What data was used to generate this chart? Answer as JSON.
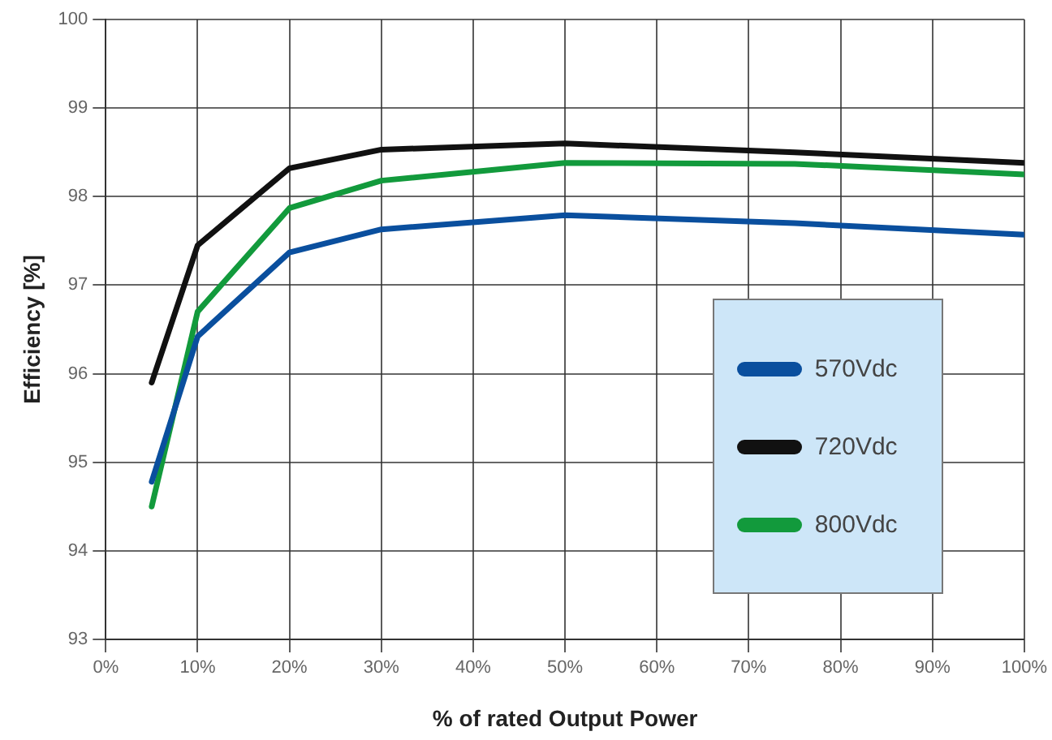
{
  "chart_data": {
    "type": "line",
    "xlabel": "% of rated Output Power",
    "ylabel": "Efficiency [%]",
    "x": [
      5,
      10,
      20,
      30,
      50,
      75,
      100
    ],
    "series": [
      {
        "name": "570Vdc",
        "color": "#0a4f9e",
        "values": [
          94.78,
          96.42,
          97.37,
          97.63,
          97.79,
          97.7,
          97.57
        ]
      },
      {
        "name": "720Vdc",
        "color": "#111111",
        "values": [
          95.9,
          97.45,
          98.32,
          98.53,
          98.6,
          98.5,
          98.38
        ]
      },
      {
        "name": "800Vdc",
        "color": "#129a3c",
        "values": [
          94.5,
          96.7,
          97.87,
          98.18,
          98.38,
          98.37,
          98.25
        ]
      }
    ],
    "xlim": [
      0,
      100
    ],
    "xticks": [
      {
        "value": 0,
        "label": "0%"
      },
      {
        "value": 10,
        "label": "10%"
      },
      {
        "value": 20,
        "label": "20%"
      },
      {
        "value": 30,
        "label": "30%"
      },
      {
        "value": 40,
        "label": "40%"
      },
      {
        "value": 50,
        "label": "50%"
      },
      {
        "value": 60,
        "label": "60%"
      },
      {
        "value": 70,
        "label": "70%"
      },
      {
        "value": 80,
        "label": "80%"
      },
      {
        "value": 90,
        "label": "90%"
      },
      {
        "value": 100,
        "label": "100%"
      }
    ],
    "ylim": [
      93,
      100
    ],
    "yticks": [
      93,
      94,
      95,
      96,
      97,
      98,
      99,
      100
    ],
    "grid": true,
    "legend": "bottom right",
    "marker": "none",
    "line_style": "solid"
  }
}
